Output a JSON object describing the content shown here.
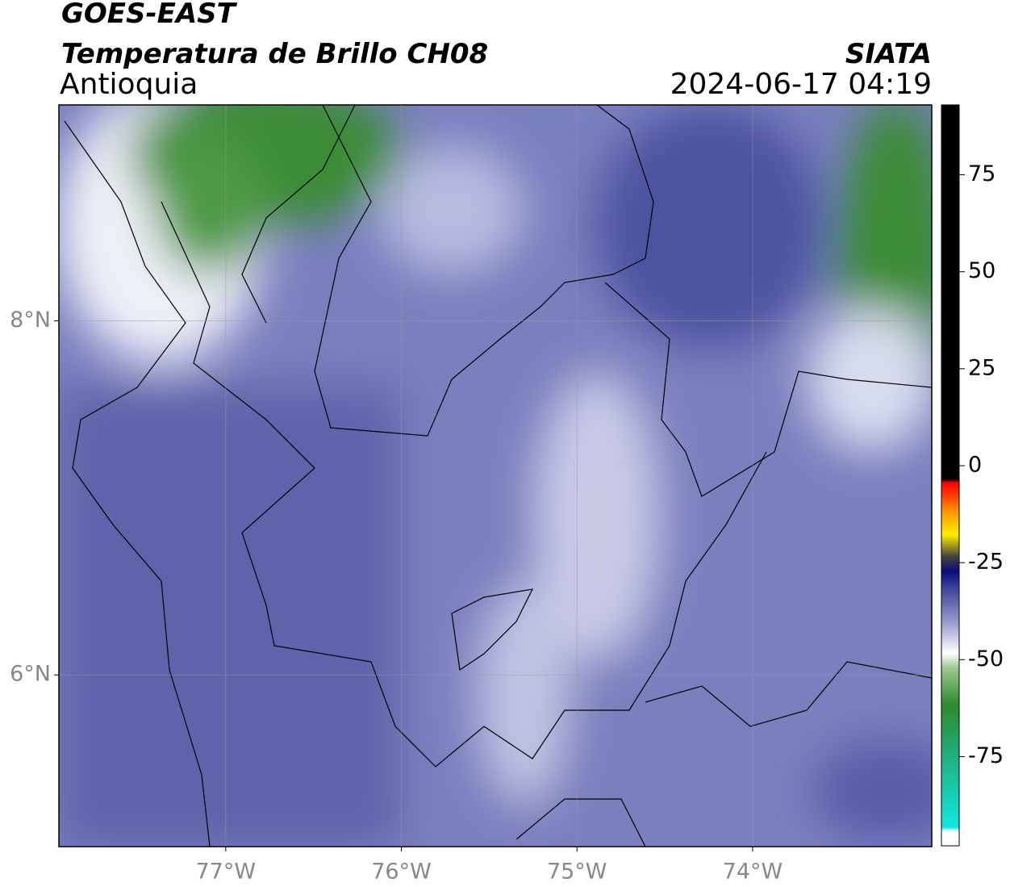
{
  "header": {
    "title": "GOES-EAST",
    "subtitle": "Temperatura de Brillo CH08",
    "region": "Antioquia",
    "source": "SIATA",
    "datetime": "2024-06-17 04:19"
  },
  "map": {
    "xlim": [
      -77.95,
      -72.98
    ],
    "ylim": [
      5.03,
      9.22
    ],
    "xticks": [
      {
        "value": -77,
        "label": "77°W"
      },
      {
        "value": -76,
        "label": "76°W"
      },
      {
        "value": -75,
        "label": "75°W"
      },
      {
        "value": -74,
        "label": "74°W"
      }
    ],
    "yticks": [
      {
        "value": 8,
        "label": "8°N"
      },
      {
        "value": 6,
        "label": "6°N"
      }
    ],
    "grid": true
  },
  "colorbar": {
    "ylim": [
      -98,
      93
    ],
    "yticks": [
      75,
      50,
      25,
      0,
      -25,
      -50,
      -75
    ]
  }
}
